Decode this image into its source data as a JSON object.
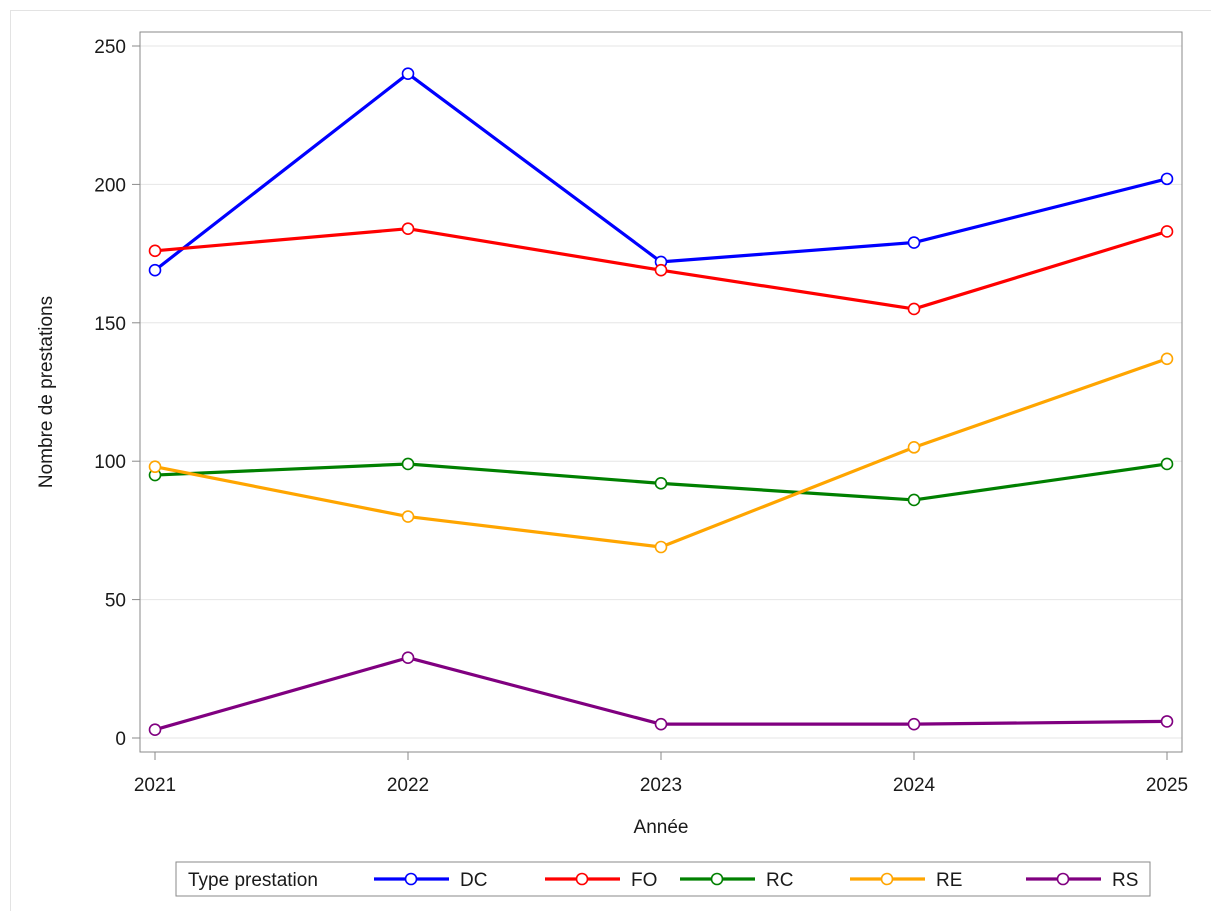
{
  "chart_data": {
    "type": "line",
    "title": "",
    "xlabel": "Année",
    "ylabel": "Nombre de prestations",
    "categories": [
      "2021",
      "2022",
      "2023",
      "2024",
      "2025"
    ],
    "yticks": [
      "0",
      "50",
      "100",
      "150",
      "200",
      "250"
    ],
    "ylim": [
      0,
      250
    ],
    "grid": "horizontal",
    "legend_position": "bottom",
    "legend_title": "Type prestation",
    "series": [
      {
        "name": "DC",
        "color": "#0000ff",
        "values": [
          169,
          240,
          172,
          179,
          202
        ]
      },
      {
        "name": "FO",
        "color": "#ff0000",
        "values": [
          176,
          184,
          169,
          155,
          183
        ]
      },
      {
        "name": "RC",
        "color": "#008000",
        "values": [
          95,
          99,
          92,
          86,
          99
        ]
      },
      {
        "name": "RE",
        "color": "#ffa500",
        "values": [
          98,
          80,
          69,
          105,
          137
        ]
      },
      {
        "name": "RS",
        "color": "#800080",
        "values": [
          3,
          29,
          5,
          5,
          6
        ]
      }
    ]
  }
}
